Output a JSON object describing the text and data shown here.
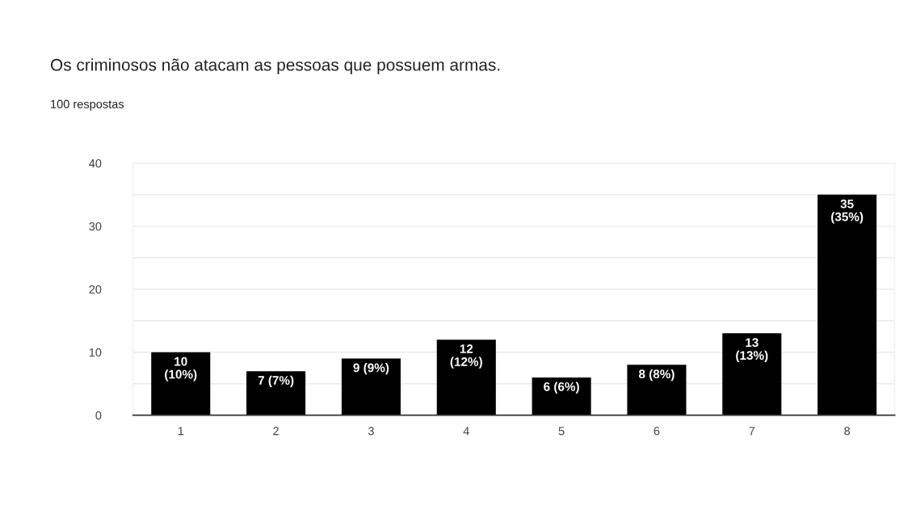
{
  "chart_data": {
    "type": "bar",
    "title": "Os criminosos não atacam as pessoas que possuem armas.",
    "subtitle": "100 respostas",
    "categories": [
      "1",
      "2",
      "3",
      "4",
      "5",
      "6",
      "7",
      "8"
    ],
    "values": [
      10,
      7,
      9,
      12,
      6,
      8,
      13,
      35
    ],
    "value_labels": [
      "10\n(10%)",
      "7 (7%)",
      "9 (9%)",
      "12\n(12%)",
      "6 (6%)",
      "8 (8%)",
      "13\n(13%)",
      "35\n(35%)"
    ],
    "color": "#000000",
    "ylim": [
      0,
      40
    ],
    "yticks": [
      0,
      {
        "value": 5,
        "label": null
      },
      10,
      {
        "value": 15,
        "label": null
      },
      20,
      {
        "value": 25,
        "label": null
      },
      30,
      {
        "value": 35,
        "label": null
      },
      40
    ],
    "grid": "y",
    "legend": false
  }
}
